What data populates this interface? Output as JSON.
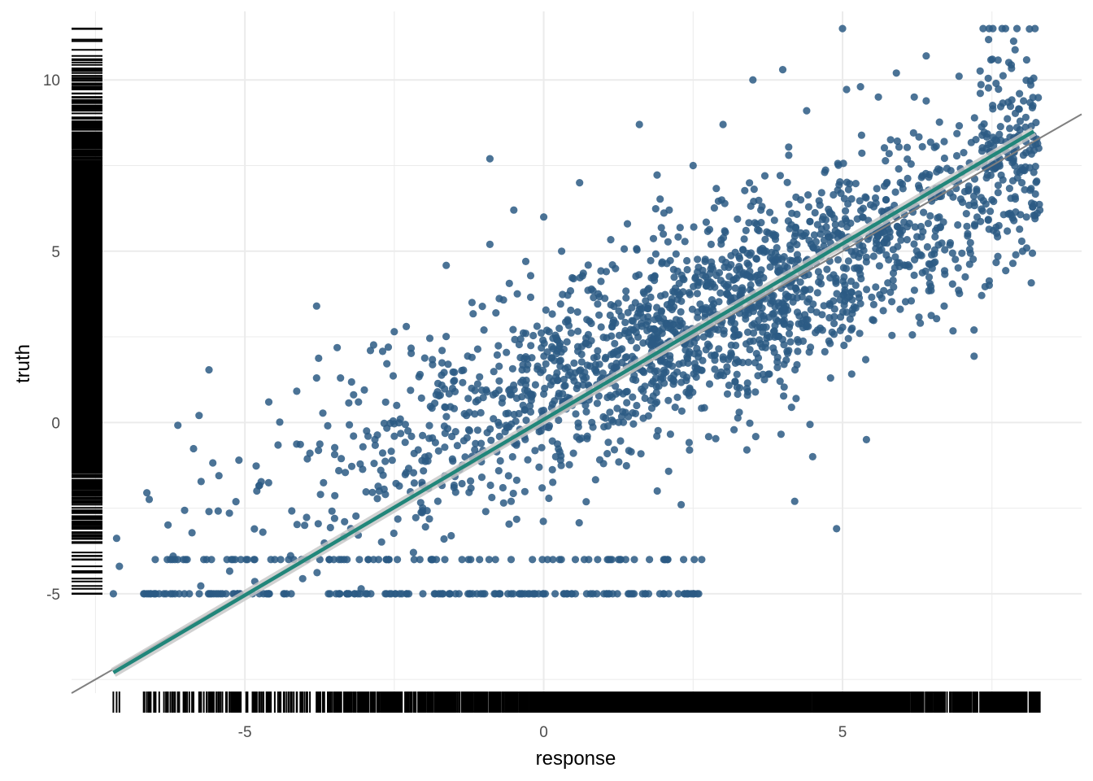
{
  "chart_data": {
    "type": "scatter",
    "title": "",
    "xlabel": "response",
    "ylabel": "truth",
    "xlim": [
      -7.9,
      9.0
    ],
    "ylim": [
      -7.9,
      12.0
    ],
    "x_ticks": [
      -5,
      0,
      5
    ],
    "x_tick_labels": [
      "-5",
      "0",
      "5"
    ],
    "y_ticks": [
      -5,
      0,
      5,
      10
    ],
    "y_tick_labels": [
      "-5",
      "0",
      "5",
      "10"
    ],
    "grid": true,
    "legend": "none",
    "rug": [
      "x",
      "y"
    ],
    "series": [
      {
        "kind": "points",
        "approx_count": 2000,
        "censored_floor": -5,
        "trend": {
          "slope": 1.0,
          "intercept": 0.0,
          "x_range": [
            -5.5,
            7.5
          ],
          "noise_sd": 1.7
        }
      }
    ],
    "points": [
      [
        -7.2,
        -5.0
      ],
      [
        -6.5,
        -4.0
      ],
      [
        -6.2,
        -3.9
      ],
      [
        -5.6,
        -2.6
      ],
      [
        -5.3,
        -4.0
      ],
      [
        -5.1,
        -1.1
      ],
      [
        -4.8,
        -2.0
      ],
      [
        -4.6,
        0.6
      ],
      [
        -4.7,
        -3.2
      ],
      [
        -4.5,
        -4.0
      ],
      [
        -3.8,
        3.4
      ],
      [
        -3.8,
        1.3
      ],
      [
        -3.4,
        1.3
      ],
      [
        -3.1,
        0.6
      ],
      [
        -2.9,
        2.1
      ],
      [
        -2.6,
        2.2
      ],
      [
        -2.4,
        0.1
      ],
      [
        -2.3,
        2.8
      ],
      [
        -2.1,
        -0.8
      ],
      [
        -1.7,
        2.1
      ],
      [
        -1.6,
        1.7
      ],
      [
        -1.2,
        3.5
      ],
      [
        -1.2,
        1.9
      ],
      [
        -1.0,
        2.7
      ],
      [
        -0.9,
        7.7
      ],
      [
        -0.8,
        3.2
      ],
      [
        -0.5,
        6.2
      ],
      [
        -0.3,
        4.7
      ],
      [
        0.0,
        6.0
      ],
      [
        0.3,
        5.0
      ],
      [
        0.6,
        7.0
      ],
      [
        -0.9,
        5.2
      ],
      [
        -0.3,
        1.1
      ],
      [
        0.2,
        -1.0
      ],
      [
        0.4,
        3.0
      ],
      [
        0.7,
        0.5
      ],
      [
        1.0,
        -1.2
      ],
      [
        1.4,
        5.8
      ],
      [
        1.6,
        3.3
      ],
      [
        1.6,
        8.7
      ],
      [
        1.8,
        2.0
      ],
      [
        1.9,
        -2.0
      ],
      [
        2.0,
        5.5
      ],
      [
        2.1,
        6.2
      ],
      [
        2.3,
        -2.4
      ],
      [
        2.5,
        7.5
      ],
      [
        2.7,
        4.7
      ],
      [
        2.9,
        3.0
      ],
      [
        3.0,
        8.7
      ],
      [
        3.2,
        1.2
      ],
      [
        3.4,
        -0.8
      ],
      [
        3.5,
        10.0
      ],
      [
        3.6,
        3.4
      ],
      [
        3.7,
        7.2
      ],
      [
        3.9,
        5.1
      ],
      [
        4.0,
        10.3
      ],
      [
        4.1,
        2.1
      ],
      [
        4.2,
        -2.3
      ],
      [
        4.3,
        6.5
      ],
      [
        4.4,
        9.1
      ],
      [
        4.5,
        -1.0
      ],
      [
        4.6,
        4.1
      ],
      [
        4.7,
        7.3
      ],
      [
        4.8,
        1.3
      ],
      [
        4.9,
        -3.1
      ],
      [
        5.0,
        11.5
      ],
      [
        5.1,
        6.8
      ],
      [
        5.2,
        4.5
      ],
      [
        5.3,
        9.8
      ],
      [
        5.4,
        -0.5
      ],
      [
        5.5,
        3.0
      ],
      [
        5.6,
        9.5
      ],
      [
        5.7,
        6.9
      ],
      [
        5.8,
        3.8
      ],
      [
        5.9,
        10.2
      ],
      [
        6.0,
        5.6
      ],
      [
        6.2,
        9.5
      ],
      [
        6.3,
        2.9
      ],
      [
        6.4,
        10.7
      ],
      [
        6.5,
        4.5
      ],
      [
        6.6,
        7.4
      ],
      [
        6.7,
        3.4
      ],
      [
        7.0,
        7.3
      ],
      [
        7.2,
        2.7
      ],
      [
        7.6,
        7.8
      ],
      [
        7.5,
        6.5
      ],
      [
        8.0,
        7.0
      ],
      [
        8.2,
        7.3
      ],
      [
        8.3,
        6.2
      ],
      [
        6.7,
        8.2
      ],
      [
        5.9,
        6.0
      ],
      [
        4.1,
        7.8
      ],
      [
        2.8,
        5.2
      ],
      [
        1.2,
        2.9
      ],
      [
        0.5,
        4.2
      ],
      [
        -0.4,
        -0.2
      ],
      [
        -1.5,
        -1.9
      ],
      [
        -2.5,
        -0.4
      ],
      [
        -3.5,
        -2.8
      ],
      [
        -4.0,
        -3.0
      ]
    ],
    "regression_line": {
      "color": "#21867a",
      "from": [
        -7.2,
        -7.3
      ],
      "to": [
        8.2,
        8.5
      ]
    },
    "identity_line": {
      "color": "#808080",
      "from": [
        -7.9,
        -7.9
      ],
      "to": [
        9.0,
        9.0
      ]
    },
    "colors": {
      "points": "#2b5b84",
      "regression": "#21867a",
      "ribbon": "#c6c6c6",
      "identity": "#808080",
      "rug": "#000000",
      "grid": "#ebebeb"
    }
  }
}
